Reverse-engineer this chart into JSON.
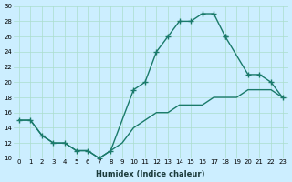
{
  "xlabel": "Humidex (Indice chaleur)",
  "bg_color": "#cceeff",
  "grid_color": "#aaddcc",
  "line_color": "#1a7a6a",
  "xlim": [
    -0.5,
    23.5
  ],
  "ylim": [
    10,
    30
  ],
  "xticks": [
    0,
    1,
    2,
    3,
    4,
    5,
    6,
    7,
    8,
    9,
    10,
    11,
    12,
    13,
    14,
    15,
    16,
    17,
    18,
    19,
    20,
    21,
    22,
    23
  ],
  "yticks": [
    10,
    12,
    14,
    16,
    18,
    20,
    22,
    24,
    26,
    28,
    30
  ],
  "curve1_x": [
    0,
    1,
    2,
    3,
    4,
    5,
    6,
    7,
    8,
    10,
    11,
    12,
    13,
    14,
    15,
    16,
    17,
    18
  ],
  "curve1_y": [
    15,
    15,
    13,
    12,
    12,
    11,
    11,
    10,
    11,
    19,
    20,
    24,
    26,
    28,
    28,
    29,
    29,
    26
  ],
  "curve2_x": [
    18,
    20,
    21,
    22,
    23
  ],
  "curve2_y": [
    26,
    21,
    21,
    20,
    18
  ],
  "curve3_x": [
    0,
    1,
    2,
    3,
    4,
    5,
    6,
    7,
    8,
    9,
    10,
    11,
    12,
    13,
    14,
    15,
    16,
    17,
    18,
    19,
    20,
    21,
    22,
    23
  ],
  "curve3_y": [
    15,
    15,
    13,
    12,
    12,
    11,
    11,
    10,
    11,
    12,
    14,
    15,
    16,
    16,
    17,
    17,
    17,
    18,
    18,
    18,
    19,
    19,
    19,
    18
  ]
}
